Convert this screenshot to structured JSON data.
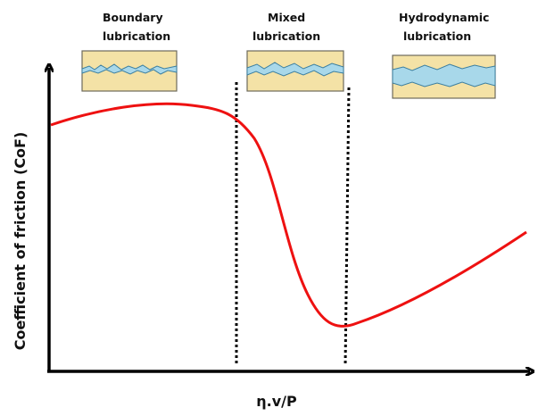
{
  "regions": [
    {
      "label": [
        "Boundary",
        "lubrication"
      ]
    },
    {
      "label": [
        "Mixed",
        "lubrication"
      ]
    },
    {
      "label": [
        "Hydrodynamic",
        "lubrication"
      ]
    }
  ],
  "y_axis_label": "Coefficient of friction (CoF)",
  "x_axis_label": "η.v/P"
}
